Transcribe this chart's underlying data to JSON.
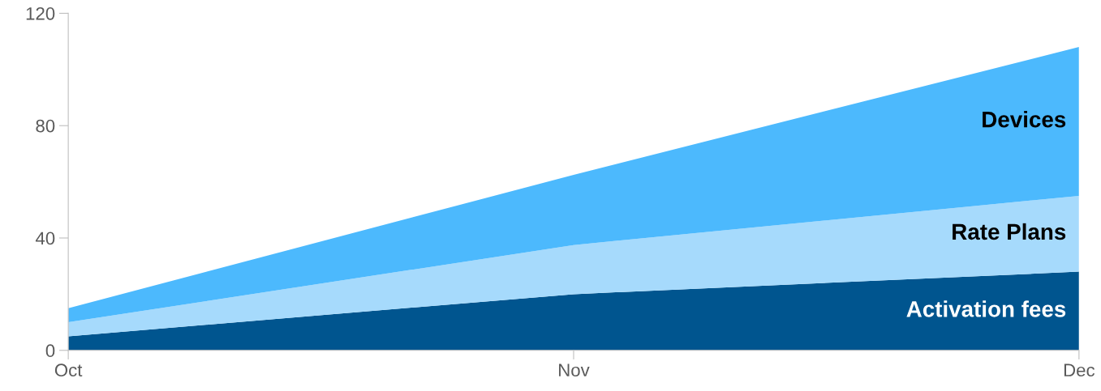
{
  "chart_data": {
    "type": "area",
    "stacked": true,
    "categories": [
      "Oct",
      "Nov",
      "Dec"
    ],
    "series": [
      {
        "name": "Activation fees",
        "color": "#00558f",
        "values": [
          5,
          20,
          28
        ]
      },
      {
        "name": "Rate Plans",
        "color": "#a6dafc",
        "values": [
          5,
          17.5,
          27
        ]
      },
      {
        "name": "Devices",
        "color": "#4cb9fd",
        "values": [
          5,
          25,
          53
        ]
      }
    ],
    "ylim": [
      0,
      120
    ],
    "yticks": [
      0,
      40,
      80,
      120
    ],
    "grid": false,
    "legend": false
  }
}
